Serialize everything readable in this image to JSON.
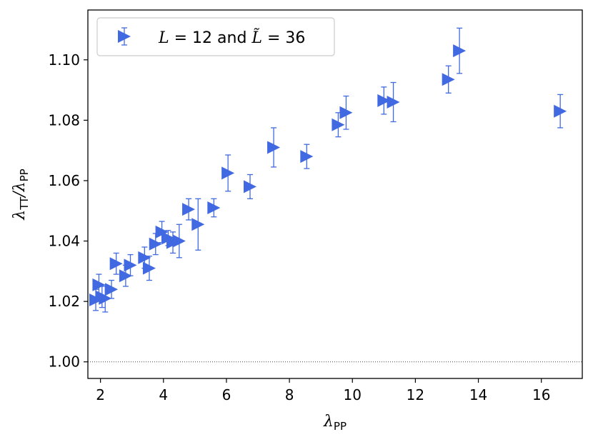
{
  "chart_data": {
    "type": "scatter",
    "xlabel": {
      "base": "λ",
      "sub": "PP"
    },
    "ylabel": {
      "base": "λ",
      "sub": "TT",
      "sep": "/",
      "base2": "λ",
      "sub2": "PP"
    },
    "xlim": [
      1.6,
      17.3
    ],
    "ylim": [
      0.9945,
      1.1165
    ],
    "xticks": [
      2,
      4,
      6,
      8,
      10,
      12,
      14,
      16
    ],
    "xtick_labels": [
      "2",
      "4",
      "6",
      "8",
      "10",
      "12",
      "14",
      "16"
    ],
    "yticks": [
      1.0,
      1.02,
      1.04,
      1.06,
      1.08,
      1.1
    ],
    "ytick_labels": [
      "1.00",
      "1.02",
      "1.04",
      "1.06",
      "1.08",
      "1.10"
    ],
    "reference_line": {
      "y": 1.0,
      "style": "dotted",
      "color": "#444444"
    },
    "marker_color": "#4169e1",
    "marker": "triangle-right",
    "legend": {
      "position": "top-left",
      "parts": [
        {
          "text": "L",
          "math": true
        },
        {
          "text": " = 12 and ",
          "math": false
        },
        {
          "text": "L̃",
          "math": true
        },
        {
          "text": " = 36",
          "math": false
        }
      ]
    },
    "series": [
      {
        "name": "L = 12 and L̃ = 36",
        "points": [
          {
            "x": 1.85,
            "y": 1.0205,
            "err": 0.0035
          },
          {
            "x": 1.95,
            "y": 1.0255,
            "err": 0.0035
          },
          {
            "x": 2.05,
            "y": 1.0215,
            "err": 0.0035
          },
          {
            "x": 2.15,
            "y": 1.021,
            "err": 0.0045
          },
          {
            "x": 2.35,
            "y": 1.024,
            "err": 0.003
          },
          {
            "x": 2.5,
            "y": 1.0325,
            "err": 0.0035
          },
          {
            "x": 2.8,
            "y": 1.0285,
            "err": 0.0035
          },
          {
            "x": 2.95,
            "y": 1.032,
            "err": 0.0035
          },
          {
            "x": 3.4,
            "y": 1.0345,
            "err": 0.0035
          },
          {
            "x": 3.55,
            "y": 1.031,
            "err": 0.004
          },
          {
            "x": 3.75,
            "y": 1.039,
            "err": 0.0035
          },
          {
            "x": 3.95,
            "y": 1.043,
            "err": 0.0035
          },
          {
            "x": 4.15,
            "y": 1.041,
            "err": 0.0025
          },
          {
            "x": 4.3,
            "y": 1.0395,
            "err": 0.0035
          },
          {
            "x": 4.5,
            "y": 1.04,
            "err": 0.0055
          },
          {
            "x": 4.8,
            "y": 1.0505,
            "err": 0.0035
          },
          {
            "x": 5.1,
            "y": 1.0455,
            "err": 0.0085
          },
          {
            "x": 5.6,
            "y": 1.051,
            "err": 0.003
          },
          {
            "x": 6.05,
            "y": 1.0625,
            "err": 0.006
          },
          {
            "x": 6.75,
            "y": 1.058,
            "err": 0.004
          },
          {
            "x": 7.5,
            "y": 1.071,
            "err": 0.0065
          },
          {
            "x": 8.55,
            "y": 1.068,
            "err": 0.004
          },
          {
            "x": 9.55,
            "y": 1.0785,
            "err": 0.004
          },
          {
            "x": 9.8,
            "y": 1.0825,
            "err": 0.0055
          },
          {
            "x": 11.0,
            "y": 1.0865,
            "err": 0.0045
          },
          {
            "x": 11.3,
            "y": 1.086,
            "err": 0.0065
          },
          {
            "x": 13.05,
            "y": 1.0935,
            "err": 0.0045
          },
          {
            "x": 13.4,
            "y": 1.103,
            "err": 0.0075
          },
          {
            "x": 16.6,
            "y": 1.083,
            "err": 0.0055
          }
        ]
      }
    ]
  }
}
